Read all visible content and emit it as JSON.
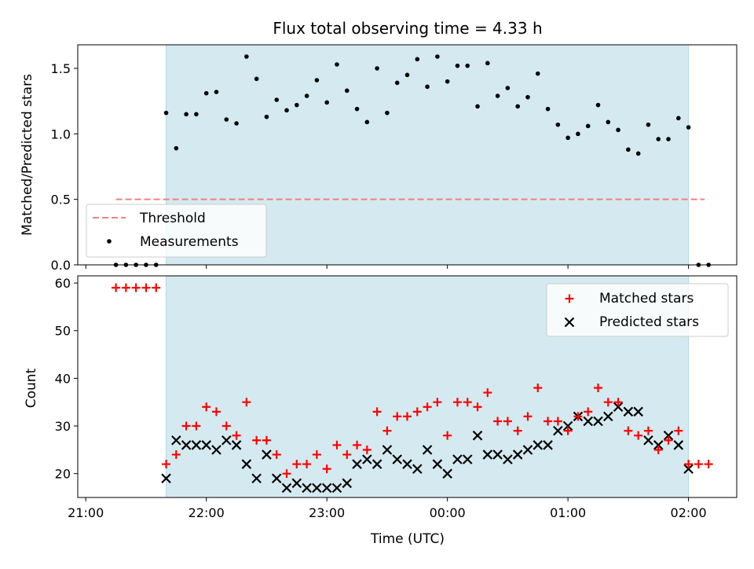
{
  "chart_data": {
    "type": "scatter",
    "title": "Flux total observing time = 4.33 h",
    "xlabel": "Time (UTC)",
    "x_ticks": [
      {
        "label": "21:00",
        "t": 0
      },
      {
        "label": "22:00",
        "t": 60
      },
      {
        "label": "23:00",
        "t": 120
      },
      {
        "label": "00:00",
        "t": 180
      },
      {
        "label": "01:00",
        "t": 240
      },
      {
        "label": "02:00",
        "t": 300
      }
    ],
    "x_unit": "minutes after 21:00 UTC",
    "xlim": [
      -4,
      324
    ],
    "observing_window": [
      40,
      300
    ],
    "top": {
      "ylabel": "Matched/Predicted stars",
      "ylim": [
        0,
        1.68
      ],
      "yticks": [
        "0.0",
        "0.5",
        "1.0",
        "1.5"
      ],
      "threshold": {
        "name": "Threshold",
        "value": 0.5,
        "x_range": [
          15,
          308
        ],
        "color": "#f08080"
      },
      "measurements_name": "Measurements",
      "measurements": [
        [
          15,
          0
        ],
        [
          20,
          0
        ],
        [
          25,
          0
        ],
        [
          30,
          0
        ],
        [
          35,
          0
        ],
        [
          40,
          1.16
        ],
        [
          45,
          0.89
        ],
        [
          50,
          1.15
        ],
        [
          55,
          1.15
        ],
        [
          60,
          1.31
        ],
        [
          65,
          1.32
        ],
        [
          70,
          1.11
        ],
        [
          75,
          1.08
        ],
        [
          80,
          1.59
        ],
        [
          85,
          1.42
        ],
        [
          90,
          1.13
        ],
        [
          95,
          1.26
        ],
        [
          100,
          1.18
        ],
        [
          105,
          1.22
        ],
        [
          110,
          1.29
        ],
        [
          115,
          1.41
        ],
        [
          120,
          1.24
        ],
        [
          125,
          1.53
        ],
        [
          130,
          1.33
        ],
        [
          135,
          1.19
        ],
        [
          140,
          1.09
        ],
        [
          145,
          1.5
        ],
        [
          150,
          1.16
        ],
        [
          155,
          1.39
        ],
        [
          160,
          1.45
        ],
        [
          165,
          1.57
        ],
        [
          170,
          1.36
        ],
        [
          175,
          1.59
        ],
        [
          180,
          1.4
        ],
        [
          185,
          1.52
        ],
        [
          190,
          1.52
        ],
        [
          195,
          1.21
        ],
        [
          200,
          1.54
        ],
        [
          205,
          1.29
        ],
        [
          210,
          1.35
        ],
        [
          215,
          1.21
        ],
        [
          220,
          1.28
        ],
        [
          225,
          1.46
        ],
        [
          230,
          1.19
        ],
        [
          235,
          1.07
        ],
        [
          240,
          0.97
        ],
        [
          245,
          1.0
        ],
        [
          250,
          1.06
        ],
        [
          255,
          1.22
        ],
        [
          260,
          1.09
        ],
        [
          265,
          1.03
        ],
        [
          270,
          0.88
        ],
        [
          275,
          0.85
        ],
        [
          280,
          1.07
        ],
        [
          285,
          0.96
        ],
        [
          290,
          0.96
        ],
        [
          295,
          1.12
        ],
        [
          300,
          1.05
        ],
        [
          305,
          0
        ],
        [
          310,
          0
        ]
      ]
    },
    "bottom": {
      "ylabel": "Count",
      "ylim": [
        15,
        61.5
      ],
      "yticks": [
        "20",
        "30",
        "40",
        "50",
        "60"
      ],
      "series": [
        {
          "name": "Matched stars",
          "marker": "+",
          "color": "#ff0000",
          "points": [
            [
              15,
              59
            ],
            [
              20,
              59
            ],
            [
              25,
              59
            ],
            [
              30,
              59
            ],
            [
              35,
              59
            ],
            [
              40,
              22
            ],
            [
              45,
              24
            ],
            [
              50,
              30
            ],
            [
              55,
              30
            ],
            [
              60,
              34
            ],
            [
              65,
              33
            ],
            [
              70,
              30
            ],
            [
              75,
              28
            ],
            [
              80,
              35
            ],
            [
              85,
              27
            ],
            [
              90,
              27
            ],
            [
              95,
              24
            ],
            [
              100,
              20
            ],
            [
              105,
              22
            ],
            [
              110,
              22
            ],
            [
              115,
              24
            ],
            [
              120,
              21
            ],
            [
              125,
              26
            ],
            [
              130,
              24
            ],
            [
              135,
              26
            ],
            [
              140,
              25
            ],
            [
              145,
              33
            ],
            [
              150,
              29
            ],
            [
              155,
              32
            ],
            [
              160,
              32
            ],
            [
              165,
              33
            ],
            [
              170,
              34
            ],
            [
              175,
              35
            ],
            [
              180,
              28
            ],
            [
              185,
              35
            ],
            [
              190,
              35
            ],
            [
              195,
              34
            ],
            [
              200,
              37
            ],
            [
              205,
              31
            ],
            [
              210,
              31
            ],
            [
              215,
              29
            ],
            [
              220,
              32
            ],
            [
              225,
              38
            ],
            [
              230,
              31
            ],
            [
              235,
              31
            ],
            [
              240,
              29
            ],
            [
              245,
              32
            ],
            [
              250,
              33
            ],
            [
              255,
              38
            ],
            [
              260,
              35
            ],
            [
              265,
              35
            ],
            [
              270,
              29
            ],
            [
              275,
              28
            ],
            [
              280,
              29
            ],
            [
              285,
              25
            ],
            [
              290,
              27
            ],
            [
              295,
              29
            ],
            [
              300,
              22
            ],
            [
              305,
              22
            ],
            [
              310,
              22
            ]
          ]
        },
        {
          "name": "Predicted stars",
          "marker": "x",
          "color": "#000000",
          "points": [
            [
              40,
              19
            ],
            [
              45,
              27
            ],
            [
              50,
              26
            ],
            [
              55,
              26
            ],
            [
              60,
              26
            ],
            [
              65,
              25
            ],
            [
              70,
              27
            ],
            [
              75,
              26
            ],
            [
              80,
              22
            ],
            [
              85,
              19
            ],
            [
              90,
              24
            ],
            [
              95,
              19
            ],
            [
              100,
              17
            ],
            [
              105,
              18
            ],
            [
              110,
              17
            ],
            [
              115,
              17
            ],
            [
              120,
              17
            ],
            [
              125,
              17
            ],
            [
              130,
              18
            ],
            [
              135,
              22
            ],
            [
              140,
              23
            ],
            [
              145,
              22
            ],
            [
              150,
              25
            ],
            [
              155,
              23
            ],
            [
              160,
              22
            ],
            [
              165,
              21
            ],
            [
              170,
              25
            ],
            [
              175,
              22
            ],
            [
              180,
              20
            ],
            [
              185,
              23
            ],
            [
              190,
              23
            ],
            [
              195,
              28
            ],
            [
              200,
              24
            ],
            [
              205,
              24
            ],
            [
              210,
              23
            ],
            [
              215,
              24
            ],
            [
              220,
              25
            ],
            [
              225,
              26
            ],
            [
              230,
              26
            ],
            [
              235,
              29
            ],
            [
              240,
              30
            ],
            [
              245,
              32
            ],
            [
              250,
              31
            ],
            [
              255,
              31
            ],
            [
              260,
              32
            ],
            [
              265,
              34
            ],
            [
              270,
              33
            ],
            [
              275,
              33
            ],
            [
              280,
              27
            ],
            [
              285,
              26
            ],
            [
              290,
              28
            ],
            [
              295,
              26
            ],
            [
              300,
              21
            ]
          ]
        }
      ]
    },
    "colors": {
      "shade": "#d4eaf0",
      "shade_edge": "#b0d8e0",
      "measurement": "#000000"
    }
  }
}
